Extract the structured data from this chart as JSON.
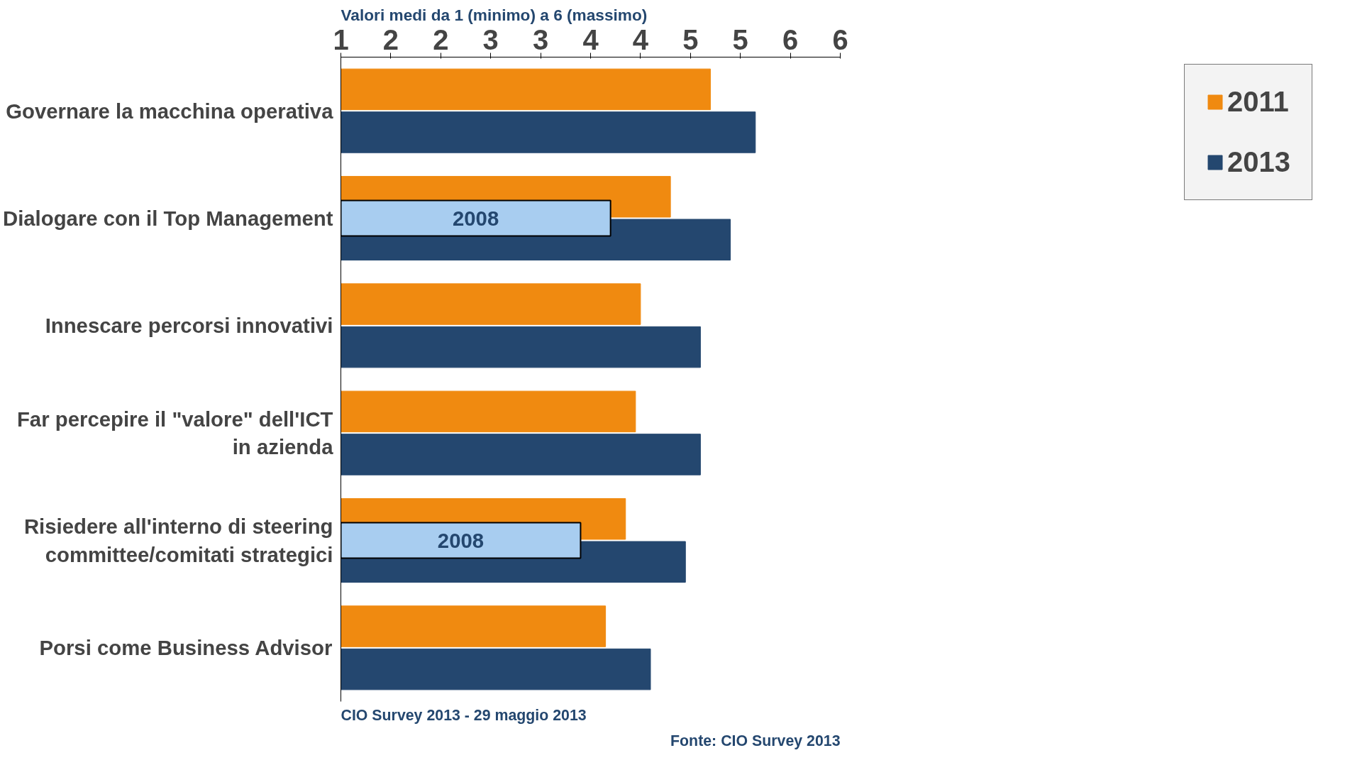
{
  "chart_data": {
    "type": "bar",
    "orientation": "horizontal",
    "subtitle": "Valori medi da 1 (minimo) a 6 (massimo)",
    "categories": [
      "Governare la macchina operativa",
      "Dialogare con il Top Management",
      "Innescare percorsi innovativi",
      "Far percepire il \"valore\" dell'ICT in azienda",
      "Risiedere all'interno di steering committee/comitati strategici",
      "Porsi come Business Advisor"
    ],
    "series": [
      {
        "name": "2011",
        "color": "#f08a10",
        "values": [
          4.7,
          4.3,
          4.0,
          3.95,
          3.85,
          3.65
        ]
      },
      {
        "name": "2013",
        "color": "#24476f",
        "values": [
          5.15,
          4.9,
          4.6,
          4.6,
          4.45,
          4.1
        ]
      },
      {
        "name": "2008",
        "color": "#a8cdf0",
        "values": [
          null,
          3.7,
          null,
          null,
          3.4,
          null
        ]
      }
    ],
    "xlim": [
      1,
      6
    ],
    "xticks": [
      1,
      {
        "value": 1.5,
        "label": "2"
      },
      2,
      {
        "value": 2.5,
        "label": "3"
      },
      3,
      {
        "value": 3.5,
        "label": "4"
      },
      4,
      {
        "value": 4.5,
        "label": "5"
      },
      5,
      {
        "value": 5.5,
        "label": "6"
      },
      6
    ],
    "grid": false,
    "legend": "right",
    "annotations": [
      "CIO Survey 2013  - 29 maggio 2013",
      "Fonte: CIO Survey 2013"
    ]
  }
}
